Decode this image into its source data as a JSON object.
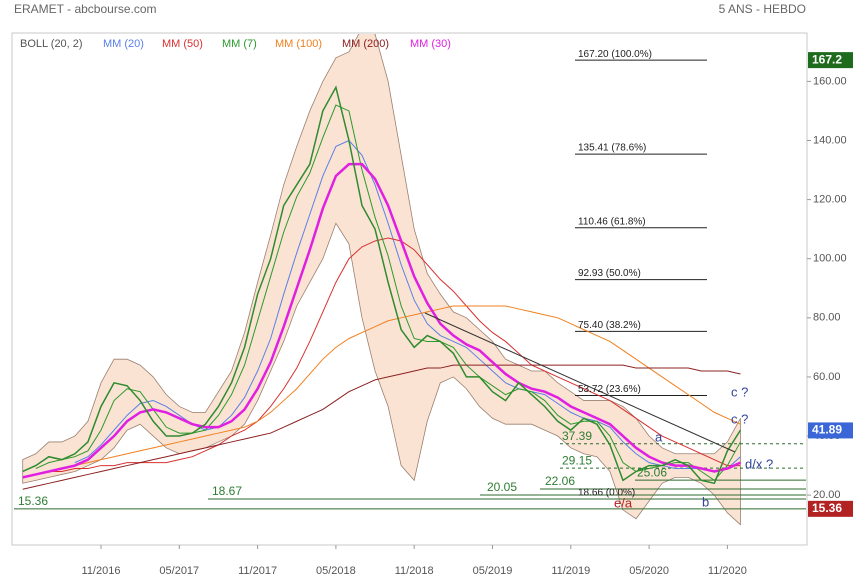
{
  "header": {
    "title": "ERAMET - abcbourse.com",
    "period": "5 ANS - HEBDO"
  },
  "chart_data": {
    "type": "line",
    "categories": [
      null,
      null,
      null,
      null,
      null,
      null,
      "11/2016",
      null,
      null,
      null,
      null,
      null,
      "05/2017",
      null,
      null,
      null,
      null,
      null,
      "11/2017",
      null,
      null,
      null,
      null,
      null,
      "05/2018",
      null,
      null,
      null,
      null,
      null,
      "11/2018",
      null,
      null,
      null,
      null,
      null,
      "05/2019",
      null,
      null,
      null,
      null,
      null,
      "11/2019",
      null,
      null,
      null,
      null,
      null,
      "05/2020",
      null,
      null,
      null,
      null,
      null,
      "11/2020",
      null
    ],
    "values": [
      28,
      30,
      33,
      32,
      34,
      38,
      50,
      58,
      57,
      52,
      45,
      40,
      40,
      41,
      44,
      50,
      58,
      70,
      88,
      100,
      118,
      125,
      132,
      150,
      158,
      140,
      118,
      110,
      92,
      76,
      70,
      74,
      72,
      68,
      60,
      60,
      55,
      52,
      58,
      54,
      50,
      45,
      42,
      46,
      44,
      37,
      25,
      28,
      30,
      30,
      32,
      30,
      25,
      24,
      35,
      42
    ],
    "color": "#2e8b2e",
    "ylim": [
      3.8,
      175.7
    ],
    "yticks": [
      {
        "value": 20,
        "label": "20.00"
      },
      {
        "value": 40,
        "label": "40.00"
      },
      {
        "value": 60,
        "label": "60.00"
      },
      {
        "value": 80,
        "label": "80.00"
      },
      {
        "value": 100,
        "label": "100.00"
      },
      {
        "value": 120,
        "label": "120.00"
      },
      {
        "value": 140,
        "label": "140.00"
      },
      {
        "value": 160,
        "label": "160.00"
      }
    ],
    "bands": {
      "name": "BOLL (20, 2)",
      "color": "#fbe3d3",
      "upper": [
        32,
        34,
        38,
        38,
        40,
        45,
        58,
        66,
        66,
        64,
        60,
        54,
        50,
        48,
        48,
        55,
        62,
        75,
        92,
        108,
        125,
        138,
        150,
        160,
        168,
        170,
        178,
        176,
        160,
        135,
        110,
        95,
        88,
        82,
        80,
        76,
        72,
        66,
        64,
        62,
        62,
        58,
        55,
        52,
        52,
        52,
        50,
        46,
        40,
        36,
        34,
        34,
        34,
        34,
        38,
        46
      ],
      "lower": [
        24,
        25,
        26,
        27,
        28,
        30,
        32,
        36,
        42,
        44,
        40,
        36,
        34,
        35,
        36,
        38,
        40,
        44,
        52,
        62,
        72,
        84,
        92,
        100,
        112,
        105,
        80,
        62,
        50,
        30,
        25,
        45,
        58,
        60,
        56,
        50,
        46,
        44,
        44,
        44,
        42,
        40,
        36,
        34,
        33,
        28,
        15,
        12,
        18,
        24,
        26,
        26,
        24,
        20,
        14,
        10
      ]
    },
    "series": [
      {
        "name": "MM (20)",
        "color": "#5a80e6",
        "values": [
          null,
          null,
          null,
          null,
          31,
          33,
          37,
          42,
          47,
          51,
          52,
          50,
          47,
          44,
          42,
          43,
          47,
          53,
          62,
          73,
          88,
          102,
          115,
          128,
          138,
          140,
          135,
          125,
          112,
          98,
          86,
          78,
          74,
          72,
          70,
          66,
          62,
          58,
          56,
          55,
          54,
          51,
          48,
          46,
          45,
          43,
          38,
          34,
          31,
          30,
          29,
          29,
          29,
          28,
          29,
          33
        ]
      },
      {
        "name": "MM (50)",
        "color": "#d83030",
        "values": [
          26,
          27,
          28,
          28,
          29,
          29,
          30,
          30,
          31,
          31,
          31,
          31,
          32,
          33,
          35,
          37,
          40,
          42,
          45,
          50,
          56,
          63,
          72,
          82,
          92,
          100,
          104,
          106,
          107,
          106,
          103,
          98,
          93,
          89,
          84,
          79,
          75,
          72,
          68,
          64,
          62,
          60,
          58,
          56,
          54,
          52,
          49,
          46,
          43,
          40,
          38,
          36,
          34,
          32,
          30,
          30
        ]
      },
      {
        "name": "MM (7)",
        "color": "#2a9a2a",
        "values": [
          null,
          29,
          31,
          32,
          33,
          35,
          42,
          52,
          56,
          55,
          49,
          43,
          41,
          41,
          42,
          47,
          54,
          64,
          79,
          94,
          109,
          121,
          129,
          141,
          152,
          150,
          130,
          114,
          101,
          84,
          73,
          72,
          72,
          70,
          64,
          60,
          57,
          54,
          56,
          55,
          52,
          47,
          44,
          45,
          45,
          40,
          31,
          28,
          29,
          30,
          31,
          31,
          28,
          25,
          30,
          38
        ]
      },
      {
        "name": "MM (100)",
        "color": "#f08020",
        "values": [
          26,
          27,
          28,
          29,
          30,
          31,
          32,
          33,
          34,
          35,
          36,
          37,
          38,
          39,
          40,
          41,
          42,
          43,
          45,
          48,
          52,
          56,
          61,
          66,
          70,
          73,
          75,
          77,
          79,
          80,
          81,
          82,
          83,
          84,
          84,
          84,
          84,
          84,
          83,
          82,
          81,
          80,
          78,
          76,
          74,
          72,
          69,
          66,
          63,
          60,
          57,
          54,
          51,
          48,
          46,
          44
        ]
      },
      {
        "name": "MM (200)",
        "color": "#8b2020",
        "values": [
          22,
          23,
          24,
          25,
          26,
          27,
          28,
          29,
          30,
          31,
          32,
          33,
          34,
          35,
          36,
          37,
          38,
          39,
          40,
          41,
          43,
          45,
          47,
          49,
          52,
          55,
          57,
          59,
          60,
          61,
          62,
          63,
          63,
          64,
          64,
          64,
          64,
          64,
          64,
          64,
          64,
          64,
          64,
          64,
          64,
          64,
          64,
          63,
          63,
          63,
          63,
          63,
          62,
          62,
          62,
          61
        ]
      },
      {
        "name": "MM (30)",
        "color": "#e020e0",
        "values": [
          26,
          27,
          28,
          29,
          30,
          32,
          36,
          40,
          45,
          48,
          49,
          48,
          46,
          44,
          43,
          43,
          45,
          49,
          56,
          65,
          77,
          90,
          103,
          117,
          128,
          132,
          132,
          127,
          118,
          106,
          94,
          85,
          78,
          74,
          71,
          69,
          65,
          61,
          58,
          56,
          55,
          53,
          50,
          48,
          46,
          44,
          40,
          36,
          33,
          31,
          30,
          30,
          29,
          28,
          29,
          31
        ]
      }
    ],
    "fib_levels": [
      {
        "value": 167.2,
        "label": "167.20  (100.0%)"
      },
      {
        "value": 135.41,
        "label": "135.41  (78.6%)"
      },
      {
        "value": 110.46,
        "label": "110.46  (61.8%)"
      },
      {
        "value": 92.93,
        "label": "92.93  (50.0%)"
      },
      {
        "value": 75.4,
        "label": "75.40  (38.2%)"
      },
      {
        "value": 53.72,
        "label": "53.72  (23.6%)"
      },
      {
        "value": 18.66,
        "label": "18.66 (0.0%)"
      }
    ],
    "levels": [
      {
        "value": 15.36,
        "label": "15.36"
      },
      {
        "value": 18.67,
        "label": "18.67"
      },
      {
        "value": 20.05,
        "label": "20.05"
      },
      {
        "value": 22.06,
        "label": "22.06"
      },
      {
        "value": 25.06,
        "label": "25.06"
      },
      {
        "value": 29.15,
        "label": "29.15"
      },
      {
        "value": 37.39,
        "label": "37.39"
      }
    ],
    "price_tags": [
      {
        "value": 167.2,
        "label": "167.2",
        "color": "#1e6b1e"
      },
      {
        "value": 41.89,
        "label": "41.89",
        "color": "#3a66d8"
      },
      {
        "value": 15.36,
        "label": "15.36",
        "color": "#b22222"
      }
    ],
    "annotations": [
      "c ?",
      "c ?",
      "a",
      "d/x ?",
      "e/a",
      "b"
    ]
  }
}
